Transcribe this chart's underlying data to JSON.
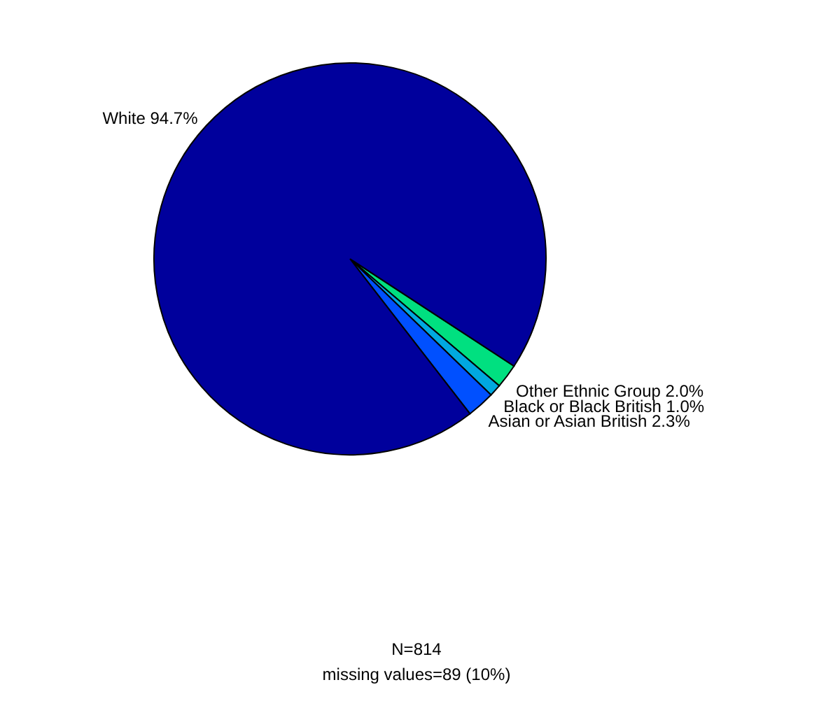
{
  "chart_data": {
    "type": "pie",
    "categories": [
      "Other Ethnic Group",
      "Black or Black British",
      "Asian or Asian British",
      "White"
    ],
    "values": [
      2.0,
      1.0,
      2.3,
      94.7
    ],
    "colors": [
      "#00e080",
      "#00a8e0",
      "#0050ff",
      "#00009c"
    ],
    "value_labels": [
      "2.0%",
      "1.0%",
      "2.3%",
      "94.7%"
    ],
    "annotations": [
      "N=814",
      "missing values=89 (10%)"
    ]
  }
}
